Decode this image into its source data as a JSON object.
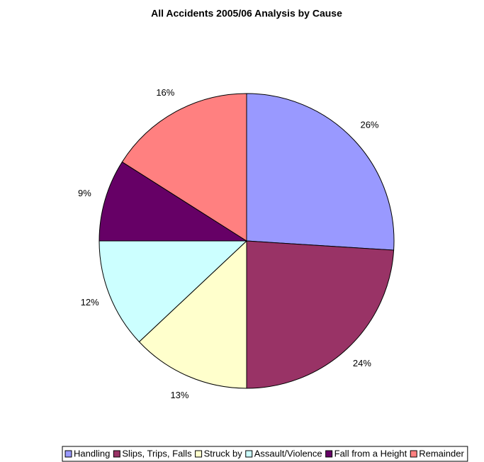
{
  "chart_data": {
    "type": "pie",
    "title": "All Accidents 2005/06 Analysis by Cause",
    "categories": [
      "Handling",
      "Slips, Trips, Falls",
      "Struck by",
      "Assault/Violence",
      "Fall from a Height",
      "Remainder"
    ],
    "values": [
      26,
      24,
      13,
      12,
      9,
      16
    ],
    "value_labels": [
      "26%",
      "24%",
      "13%",
      "12%",
      "9%",
      "16%"
    ],
    "colors": [
      "#9999ff",
      "#993366",
      "#ffffcc",
      "#ccffff",
      "#660066",
      "#ff8080"
    ],
    "legend": "bottom"
  }
}
